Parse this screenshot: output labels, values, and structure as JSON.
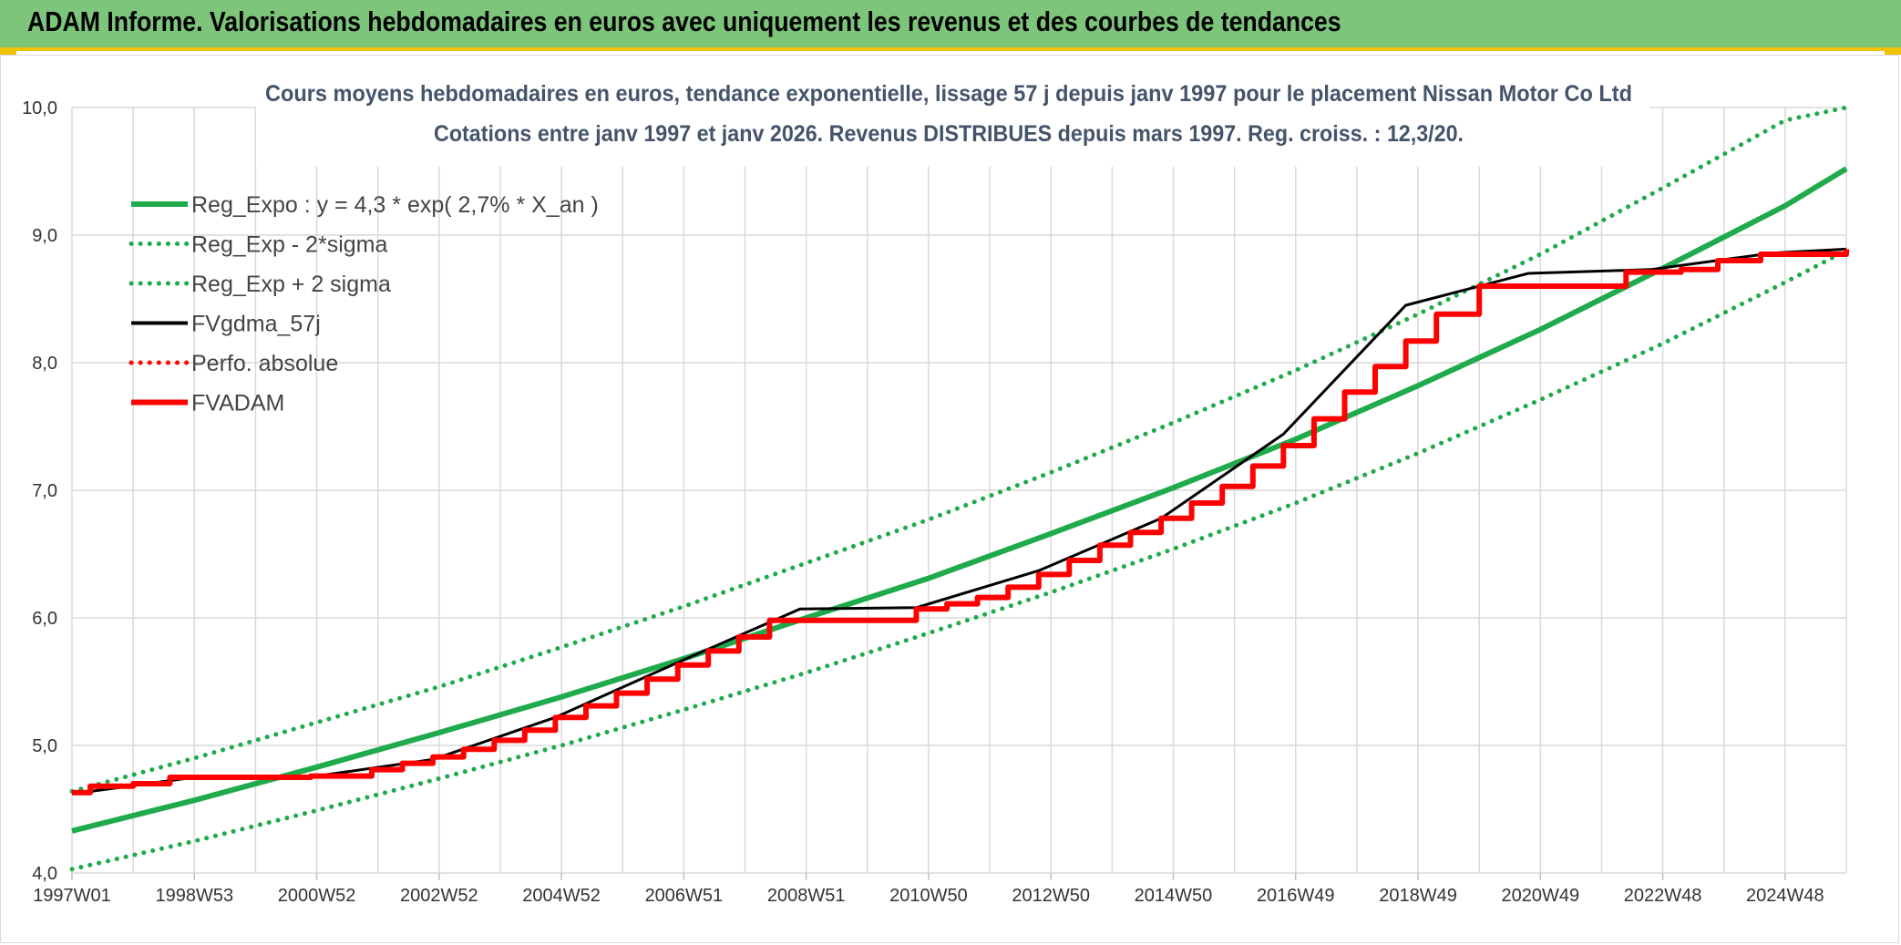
{
  "header": {
    "title": "ADAM Informe. Valorisations hebdomadaires en euros avec uniquement les revenus et des courbes de tendances"
  },
  "colors": {
    "header_bg": "#7dc57a",
    "accent_border": "#f2c200",
    "trend": "#1faa4b",
    "adam": "#ff0000",
    "gdma": "#000000",
    "grid": "#d9d9d9"
  },
  "chart_data": {
    "type": "line",
    "title": "Cours moyens hebdomadaires en euros, tendance exponentielle, lissage 57 j depuis janv 1997 pour le placement Nissan Motor Co Ltd",
    "subtitle": "Cotations entre janv 1997 et janv 2026. Revenus DISTRIBUES depuis mars 1997. Reg. croiss. : 12,3/20.",
    "xlabel": "",
    "ylabel": "",
    "x_range": [
      1997.0,
      2026.0
    ],
    "ylim": [
      4.0,
      10.0
    ],
    "y_ticks": [
      "4,0",
      "5,0",
      "6,0",
      "7,0",
      "8,0",
      "9,0",
      "10,0"
    ],
    "x_ticks": [
      {
        "label": "1997W01",
        "x": 1997.0
      },
      {
        "label": "1998W53",
        "x": 1999.0
      },
      {
        "label": "2000W52",
        "x": 2001.0
      },
      {
        "label": "2002W52",
        "x": 2003.0
      },
      {
        "label": "2004W52",
        "x": 2005.0
      },
      {
        "label": "2006W51",
        "x": 2007.0
      },
      {
        "label": "2008W51",
        "x": 2009.0
      },
      {
        "label": "2010W50",
        "x": 2011.0
      },
      {
        "label": "2012W50",
        "x": 2013.0
      },
      {
        "label": "2014W50",
        "x": 2015.0
      },
      {
        "label": "2016W49",
        "x": 2017.0
      },
      {
        "label": "2018W49",
        "x": 2019.0
      },
      {
        "label": "2020W49",
        "x": 2021.0
      },
      {
        "label": "2022W48",
        "x": 2023.0
      },
      {
        "label": "2024W48",
        "x": 2025.0
      }
    ],
    "grid": true,
    "legend_position": "top-left",
    "series": [
      {
        "name": "Reg_Expo : y = 4,3 * exp( 2,7% *  X_an )",
        "style": "solid",
        "color": "#1faa4b",
        "x": [
          1997,
          1999,
          2001,
          2003,
          2005,
          2007,
          2009,
          2011,
          2013,
          2015,
          2017,
          2019,
          2021,
          2023,
          2025,
          2026
        ],
        "y": [
          4.33,
          4.57,
          4.83,
          5.1,
          5.38,
          5.68,
          6.0,
          6.31,
          6.66,
          7.02,
          7.4,
          7.82,
          8.26,
          8.74,
          9.23,
          9.52
        ]
      },
      {
        "name": "Reg_Exp - 2*sigma",
        "style": "dotted",
        "color": "#1faa4b",
        "x": [
          1997,
          1999,
          2001,
          2003,
          2005,
          2007,
          2009,
          2011,
          2013,
          2015,
          2017,
          2019,
          2021,
          2023,
          2025,
          2026
        ],
        "y": [
          4.03,
          4.25,
          4.49,
          4.74,
          5.0,
          5.28,
          5.57,
          5.88,
          6.2,
          6.54,
          6.9,
          7.29,
          7.71,
          8.15,
          8.63,
          8.88
        ]
      },
      {
        "name": "Reg_Exp + 2 sigma",
        "style": "dotted",
        "color": "#1faa4b",
        "x": [
          1997,
          1999,
          2001,
          2003,
          2005,
          2007,
          2009,
          2011,
          2013,
          2015,
          2017,
          2019,
          2021,
          2023,
          2025,
          2026
        ],
        "y": [
          4.64,
          4.9,
          5.18,
          5.46,
          5.77,
          6.09,
          6.43,
          6.77,
          7.14,
          7.53,
          7.94,
          8.38,
          8.85,
          9.37,
          9.9,
          10.0
        ]
      },
      {
        "name": "FVgdma_57j",
        "style": "solid-thin",
        "color": "#000000",
        "x": [
          1997,
          1999,
          2001,
          2002.9,
          2004.9,
          2006.9,
          2008.9,
          2010.8,
          2012.8,
          2014.8,
          2016.8,
          2018.8,
          2020.8,
          2022.8,
          2024.8,
          2026
        ],
        "y": [
          4.62,
          4.75,
          4.76,
          4.89,
          5.22,
          5.65,
          6.07,
          6.08,
          6.37,
          6.78,
          7.44,
          8.45,
          8.7,
          8.73,
          8.86,
          8.89
        ]
      },
      {
        "name": "Perfo. absolue",
        "style": "dotted",
        "color": "#ff0000",
        "x": [],
        "y": []
      },
      {
        "name": "FVADAM",
        "style": "stepped",
        "color": "#ff0000",
        "x": [
          1997.0,
          1997.3,
          1998.0,
          1998.6,
          2000.9,
          2001.9,
          2002.4,
          2002.9,
          2003.4,
          2003.9,
          2004.4,
          2004.9,
          2005.4,
          2005.9,
          2006.4,
          2006.9,
          2007.4,
          2007.9,
          2008.4,
          2010.8,
          2011.3,
          2011.8,
          2012.3,
          2012.8,
          2013.3,
          2013.8,
          2014.3,
          2014.8,
          2015.3,
          2015.8,
          2016.3,
          2016.8,
          2017.3,
          2017.8,
          2018.3,
          2018.8,
          2019.3,
          2020.0,
          2022.4,
          2023.3,
          2023.9,
          2024.6,
          2026.0
        ],
        "y": [
          4.63,
          4.68,
          4.7,
          4.75,
          4.76,
          4.81,
          4.86,
          4.91,
          4.97,
          5.04,
          5.12,
          5.22,
          5.31,
          5.41,
          5.52,
          5.63,
          5.74,
          5.85,
          5.98,
          6.07,
          6.11,
          6.16,
          6.24,
          6.34,
          6.45,
          6.57,
          6.67,
          6.78,
          6.9,
          7.03,
          7.19,
          7.35,
          7.56,
          7.77,
          7.97,
          8.17,
          8.38,
          8.6,
          8.71,
          8.73,
          8.8,
          8.85,
          8.89
        ]
      }
    ]
  }
}
